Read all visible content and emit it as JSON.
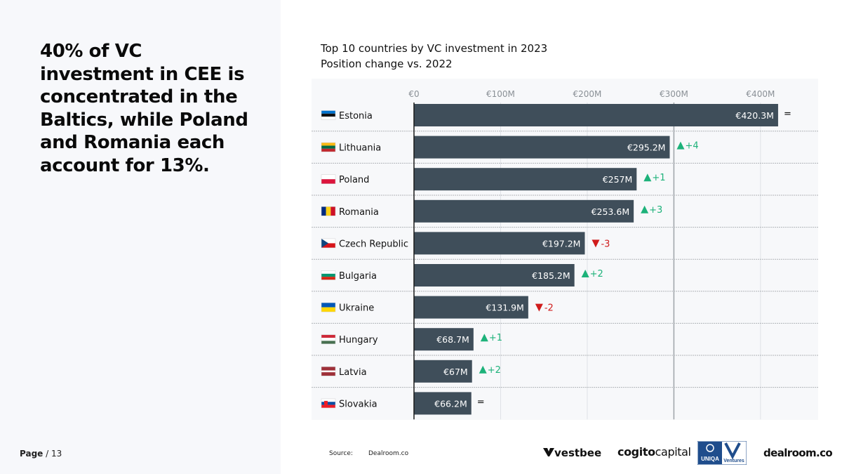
{
  "headline": "40% of VC investment in CEE is concentrated in the Baltics, while Poland and Romania each account for 13%.",
  "page": {
    "label": "Page",
    "separator": " / ",
    "number": "13"
  },
  "chart_data": {
    "type": "bar",
    "orientation": "horizontal",
    "title": "Top 10 countries by VC investment in 2023",
    "subtitle": "Position change vs. 2022",
    "xlim": [
      0,
      420.3
    ],
    "x_ticks": [
      0,
      100,
      200,
      300,
      400
    ],
    "x_tick_labels": [
      "€0",
      "€100M",
      "€200M",
      "€300M",
      "€400M"
    ],
    "reference_line": 300,
    "bar_color": "#3f4e5a",
    "up_color": "#1db27a",
    "down_color": "#d01c1c",
    "categories": [
      "Estonia",
      "Lithuania",
      "Poland",
      "Romania",
      "Czech Republic",
      "Bulgaria",
      "Ukraine",
      "Hungary",
      "Latvia",
      "Slovakia"
    ],
    "values": [
      420.3,
      295.2,
      257,
      253.6,
      197.2,
      185.2,
      131.9,
      68.7,
      67,
      66.2
    ],
    "value_labels": [
      "€420.3M",
      "€295.2M",
      "€257M",
      "€253.6M",
      "€197.2M",
      "€185.2M",
      "€131.9M",
      "€68.7M",
      "€67M",
      "€66.2M"
    ],
    "position_change": [
      "=",
      "+4",
      "+1",
      "+3",
      "-3",
      "+2",
      "-2",
      "+1",
      "+2",
      "="
    ],
    "flags": [
      "estonia-flag-icon",
      "lithuania-flag-icon",
      "poland-flag-icon",
      "romania-flag-icon",
      "czech-republic-flag-icon",
      "bulgaria-flag-icon",
      "ukraine-flag-icon",
      "hungary-flag-icon",
      "latvia-flag-icon",
      "slovakia-flag-icon"
    ]
  },
  "source": {
    "label": "Source:",
    "name": "Dealroom.co"
  },
  "logos": {
    "vestbee": "vestbee",
    "cogito_light": "cogito",
    "cogito_bold": "capital",
    "uniqa_top": "UNIQA",
    "uniqa_side": "Ventures",
    "dealroom": "dealroom.co"
  }
}
